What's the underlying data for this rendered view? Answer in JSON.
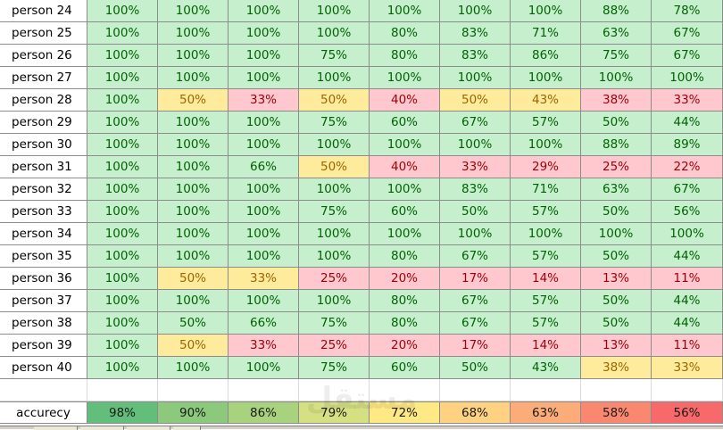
{
  "rows": [
    {
      "label": "person 24",
      "cells": [
        {
          "v": "100%",
          "s": "g"
        },
        {
          "v": "100%",
          "s": "g"
        },
        {
          "v": "100%",
          "s": "g"
        },
        {
          "v": "100%",
          "s": "g"
        },
        {
          "v": "100%",
          "s": "g"
        },
        {
          "v": "100%",
          "s": "g"
        },
        {
          "v": "100%",
          "s": "g"
        },
        {
          "v": "88%",
          "s": "g"
        },
        {
          "v": "78%",
          "s": "g"
        }
      ]
    },
    {
      "label": "person 25",
      "cells": [
        {
          "v": "100%",
          "s": "g"
        },
        {
          "v": "100%",
          "s": "g"
        },
        {
          "v": "100%",
          "s": "g"
        },
        {
          "v": "100%",
          "s": "g"
        },
        {
          "v": "80%",
          "s": "g"
        },
        {
          "v": "83%",
          "s": "g"
        },
        {
          "v": "71%",
          "s": "g"
        },
        {
          "v": "63%",
          "s": "g"
        },
        {
          "v": "67%",
          "s": "g"
        }
      ]
    },
    {
      "label": "person 26",
      "cells": [
        {
          "v": "100%",
          "s": "g"
        },
        {
          "v": "100%",
          "s": "g"
        },
        {
          "v": "100%",
          "s": "g"
        },
        {
          "v": "75%",
          "s": "g"
        },
        {
          "v": "80%",
          "s": "g"
        },
        {
          "v": "83%",
          "s": "g"
        },
        {
          "v": "86%",
          "s": "g"
        },
        {
          "v": "75%",
          "s": "g"
        },
        {
          "v": "67%",
          "s": "g"
        }
      ]
    },
    {
      "label": "person 27",
      "cells": [
        {
          "v": "100%",
          "s": "g"
        },
        {
          "v": "100%",
          "s": "g"
        },
        {
          "v": "100%",
          "s": "g"
        },
        {
          "v": "100%",
          "s": "g"
        },
        {
          "v": "100%",
          "s": "g"
        },
        {
          "v": "100%",
          "s": "g"
        },
        {
          "v": "100%",
          "s": "g"
        },
        {
          "v": "100%",
          "s": "g"
        },
        {
          "v": "100%",
          "s": "g"
        }
      ]
    },
    {
      "label": "person 28",
      "cells": [
        {
          "v": "100%",
          "s": "g"
        },
        {
          "v": "50%",
          "s": "y"
        },
        {
          "v": "33%",
          "s": "r"
        },
        {
          "v": "50%",
          "s": "y"
        },
        {
          "v": "40%",
          "s": "r"
        },
        {
          "v": "50%",
          "s": "y"
        },
        {
          "v": "43%",
          "s": "y"
        },
        {
          "v": "38%",
          "s": "r"
        },
        {
          "v": "33%",
          "s": "r"
        }
      ]
    },
    {
      "label": "person 29",
      "cells": [
        {
          "v": "100%",
          "s": "g"
        },
        {
          "v": "100%",
          "s": "g"
        },
        {
          "v": "100%",
          "s": "g"
        },
        {
          "v": "75%",
          "s": "g"
        },
        {
          "v": "60%",
          "s": "g"
        },
        {
          "v": "67%",
          "s": "g"
        },
        {
          "v": "57%",
          "s": "g"
        },
        {
          "v": "50%",
          "s": "g"
        },
        {
          "v": "44%",
          "s": "g"
        }
      ]
    },
    {
      "label": "person 30",
      "cells": [
        {
          "v": "100%",
          "s": "g"
        },
        {
          "v": "100%",
          "s": "g"
        },
        {
          "v": "100%",
          "s": "g"
        },
        {
          "v": "100%",
          "s": "g"
        },
        {
          "v": "100%",
          "s": "g"
        },
        {
          "v": "100%",
          "s": "g"
        },
        {
          "v": "100%",
          "s": "g"
        },
        {
          "v": "88%",
          "s": "g"
        },
        {
          "v": "89%",
          "s": "g"
        }
      ]
    },
    {
      "label": "person 31",
      "cells": [
        {
          "v": "100%",
          "s": "g"
        },
        {
          "v": "100%",
          "s": "g"
        },
        {
          "v": "66%",
          "s": "g"
        },
        {
          "v": "50%",
          "s": "y"
        },
        {
          "v": "40%",
          "s": "r"
        },
        {
          "v": "33%",
          "s": "r"
        },
        {
          "v": "29%",
          "s": "r"
        },
        {
          "v": "25%",
          "s": "r"
        },
        {
          "v": "22%",
          "s": "r"
        }
      ]
    },
    {
      "label": "person 32",
      "cells": [
        {
          "v": "100%",
          "s": "g"
        },
        {
          "v": "100%",
          "s": "g"
        },
        {
          "v": "100%",
          "s": "g"
        },
        {
          "v": "100%",
          "s": "g"
        },
        {
          "v": "100%",
          "s": "g"
        },
        {
          "v": "83%",
          "s": "g"
        },
        {
          "v": "71%",
          "s": "g"
        },
        {
          "v": "63%",
          "s": "g"
        },
        {
          "v": "67%",
          "s": "g"
        }
      ]
    },
    {
      "label": "person 33",
      "cells": [
        {
          "v": "100%",
          "s": "g"
        },
        {
          "v": "100%",
          "s": "g"
        },
        {
          "v": "100%",
          "s": "g"
        },
        {
          "v": "75%",
          "s": "g"
        },
        {
          "v": "60%",
          "s": "g"
        },
        {
          "v": "50%",
          "s": "g"
        },
        {
          "v": "57%",
          "s": "g"
        },
        {
          "v": "50%",
          "s": "g"
        },
        {
          "v": "56%",
          "s": "g"
        }
      ]
    },
    {
      "label": "person 34",
      "cells": [
        {
          "v": "100%",
          "s": "g"
        },
        {
          "v": "100%",
          "s": "g"
        },
        {
          "v": "100%",
          "s": "g"
        },
        {
          "v": "100%",
          "s": "g"
        },
        {
          "v": "100%",
          "s": "g"
        },
        {
          "v": "100%",
          "s": "g"
        },
        {
          "v": "100%",
          "s": "g"
        },
        {
          "v": "100%",
          "s": "g"
        },
        {
          "v": "100%",
          "s": "g"
        }
      ]
    },
    {
      "label": "person 35",
      "cells": [
        {
          "v": "100%",
          "s": "g"
        },
        {
          "v": "100%",
          "s": "g"
        },
        {
          "v": "100%",
          "s": "g"
        },
        {
          "v": "100%",
          "s": "g"
        },
        {
          "v": "80%",
          "s": "g"
        },
        {
          "v": "67%",
          "s": "g"
        },
        {
          "v": "57%",
          "s": "g"
        },
        {
          "v": "50%",
          "s": "g"
        },
        {
          "v": "44%",
          "s": "g"
        }
      ]
    },
    {
      "label": "person 36",
      "cells": [
        {
          "v": "100%",
          "s": "g"
        },
        {
          "v": "50%",
          "s": "y"
        },
        {
          "v": "33%",
          "s": "y"
        },
        {
          "v": "25%",
          "s": "r"
        },
        {
          "v": "20%",
          "s": "r"
        },
        {
          "v": "17%",
          "s": "r"
        },
        {
          "v": "14%",
          "s": "r"
        },
        {
          "v": "13%",
          "s": "r"
        },
        {
          "v": "11%",
          "s": "r"
        }
      ]
    },
    {
      "label": "person 37",
      "cells": [
        {
          "v": "100%",
          "s": "g"
        },
        {
          "v": "100%",
          "s": "g"
        },
        {
          "v": "100%",
          "s": "g"
        },
        {
          "v": "100%",
          "s": "g"
        },
        {
          "v": "80%",
          "s": "g"
        },
        {
          "v": "67%",
          "s": "g"
        },
        {
          "v": "57%",
          "s": "g"
        },
        {
          "v": "50%",
          "s": "g"
        },
        {
          "v": "44%",
          "s": "g"
        }
      ]
    },
    {
      "label": "person 38",
      "cells": [
        {
          "v": "100%",
          "s": "g"
        },
        {
          "v": "50%",
          "s": "g"
        },
        {
          "v": "66%",
          "s": "g"
        },
        {
          "v": "75%",
          "s": "g"
        },
        {
          "v": "80%",
          "s": "g"
        },
        {
          "v": "67%",
          "s": "g"
        },
        {
          "v": "57%",
          "s": "g"
        },
        {
          "v": "50%",
          "s": "g"
        },
        {
          "v": "44%",
          "s": "g"
        }
      ]
    },
    {
      "label": "person 39",
      "cells": [
        {
          "v": "100%",
          "s": "g"
        },
        {
          "v": "50%",
          "s": "y"
        },
        {
          "v": "33%",
          "s": "r"
        },
        {
          "v": "25%",
          "s": "r"
        },
        {
          "v": "20%",
          "s": "r"
        },
        {
          "v": "17%",
          "s": "r"
        },
        {
          "v": "14%",
          "s": "r"
        },
        {
          "v": "13%",
          "s": "r"
        },
        {
          "v": "11%",
          "s": "r"
        }
      ]
    },
    {
      "label": "person 40",
      "cells": [
        {
          "v": "100%",
          "s": "g"
        },
        {
          "v": "100%",
          "s": "g"
        },
        {
          "v": "100%",
          "s": "g"
        },
        {
          "v": "75%",
          "s": "g"
        },
        {
          "v": "60%",
          "s": "g"
        },
        {
          "v": "50%",
          "s": "g"
        },
        {
          "v": "43%",
          "s": "g"
        },
        {
          "v": "38%",
          "s": "y"
        },
        {
          "v": "33%",
          "s": "y"
        }
      ]
    }
  ],
  "accuracy": {
    "label": "accurecy",
    "cells": [
      {
        "v": "98%",
        "color": "#63be7b"
      },
      {
        "v": "90%",
        "color": "#8cc97d"
      },
      {
        "v": "86%",
        "color": "#a9d27f"
      },
      {
        "v": "79%",
        "color": "#d4e082"
      },
      {
        "v": "72%",
        "color": "#ffe984"
      },
      {
        "v": "68%",
        "color": "#fed280"
      },
      {
        "v": "63%",
        "color": "#fcac78"
      },
      {
        "v": "58%",
        "color": "#fa8870"
      },
      {
        "v": "56%",
        "color": "#f8696b"
      }
    ]
  },
  "colors": {
    "good_fill": "#c6efce",
    "good_text": "#006100",
    "neutral_fill": "#ffeb9c",
    "neutral_text": "#9c6500",
    "bad_fill": "#ffc7ce",
    "bad_text": "#9c0006"
  },
  "watermark": "مستقل"
}
